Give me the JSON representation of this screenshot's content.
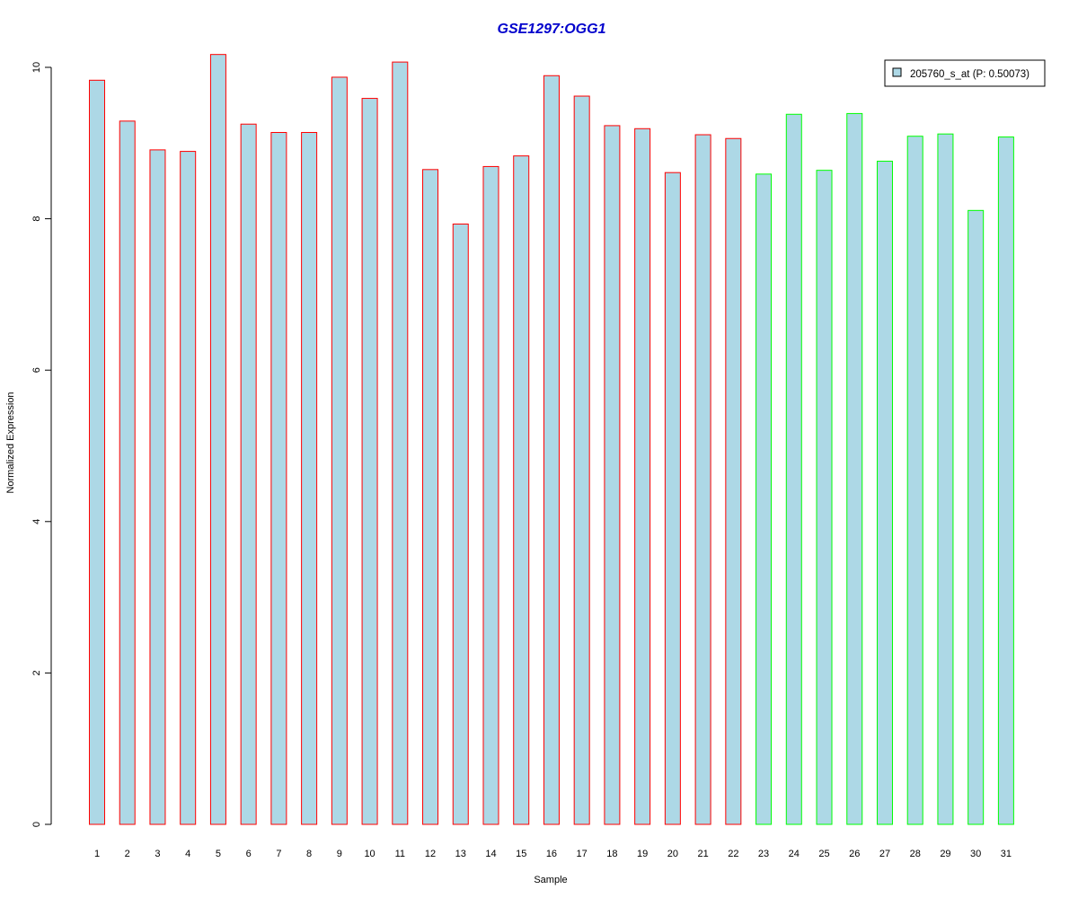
{
  "chart_data": {
    "type": "bar",
    "title": "GSE1297:OGG1",
    "xlabel": "Sample",
    "ylabel": "Normalized Expression",
    "ylim": [
      0,
      10
    ],
    "yticks": [
      0,
      2,
      4,
      6,
      8,
      10
    ],
    "grid": false,
    "legend_position": "top-right",
    "categories": [
      "1",
      "2",
      "3",
      "4",
      "5",
      "6",
      "7",
      "8",
      "9",
      "10",
      "11",
      "12",
      "13",
      "14",
      "15",
      "16",
      "17",
      "18",
      "19",
      "20",
      "21",
      "22",
      "23",
      "24",
      "25",
      "26",
      "27",
      "28",
      "29",
      "30",
      "31"
    ],
    "series": [
      {
        "name": "205760_s_at (P: 0.50073)",
        "values": [
          9.83,
          9.29,
          8.91,
          8.89,
          10.17,
          9.25,
          9.14,
          9.14,
          9.87,
          9.59,
          10.07,
          8.65,
          7.93,
          8.69,
          8.83,
          9.89,
          9.62,
          9.23,
          9.19,
          8.61,
          9.11,
          9.06,
          8.59,
          9.38,
          8.64,
          9.39,
          8.76,
          9.09,
          9.12,
          8.11,
          9.08
        ]
      }
    ],
    "bar_fill_color": "#ADD8E6",
    "group_border_colors": [
      "#FF0000",
      "#00FF00"
    ],
    "bar_group": [
      0,
      0,
      0,
      0,
      0,
      0,
      0,
      0,
      0,
      0,
      0,
      0,
      0,
      0,
      0,
      0,
      0,
      0,
      0,
      0,
      0,
      0,
      1,
      1,
      1,
      1,
      1,
      1,
      1,
      1,
      1
    ],
    "title_color": "#0000CC"
  }
}
